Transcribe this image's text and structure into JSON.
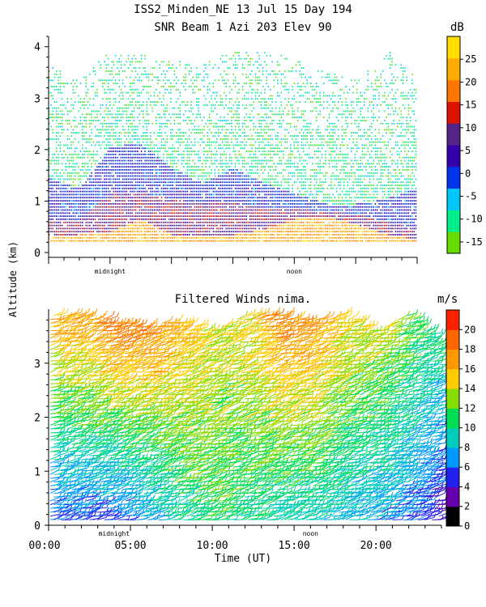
{
  "title": {
    "line1": "ISS2_Minden_NE  13 Jul 15 Day 194",
    "line2": "SNR Beam 1 Azi 203 Elev 90"
  },
  "shared": {
    "ylabel": "Altitude (km)",
    "xlabel": "Time (UT)"
  },
  "chart_data": [
    {
      "type": "heatmap",
      "name": "snr",
      "title": "SNR Beam 1 Azi 203 Elev 90",
      "ylabel": "Altitude (km)",
      "xlim": [
        0,
        24
      ],
      "ylim": [
        0,
        4.2
      ],
      "yticks": [
        0,
        1,
        2,
        3,
        4
      ],
      "xmarkers": [
        {
          "x": 4,
          "label": "midnight"
        },
        {
          "x": 16,
          "label": "noon"
        }
      ],
      "colorbar": {
        "unit": "dB",
        "ticks": [
          25,
          20,
          15,
          10,
          5,
          0,
          -5,
          -10,
          -15
        ],
        "min": -17.5,
        "max": 30,
        "colors": [
          "#66dd00",
          "#00ee88",
          "#00c8ff",
          "#0033ee",
          "#3300aa",
          "#552288",
          "#dd1100",
          "#ff7700",
          "#ffaa00",
          "#ffdd00"
        ]
      },
      "snr_profile": [
        {
          "t": 0.0,
          "top": 3.6,
          "dense": 1.4,
          "strong": 0.55,
          "vstrong": 0.25
        },
        {
          "t": 2.0,
          "top": 3.3,
          "dense": 1.2,
          "strong": 0.6,
          "vstrong": 0.3
        },
        {
          "t": 4.0,
          "top": 3.9,
          "dense": 2.0,
          "strong": 1.1,
          "vstrong": 0.35
        },
        {
          "t": 6.0,
          "top": 3.8,
          "dense": 2.1,
          "strong": 1.1,
          "vstrong": 0.6
        },
        {
          "t": 8.0,
          "top": 3.7,
          "dense": 1.6,
          "strong": 1.0,
          "vstrong": 0.3
        },
        {
          "t": 10.0,
          "top": 3.6,
          "dense": 1.3,
          "strong": 0.9,
          "vstrong": 0.3
        },
        {
          "t": 12.0,
          "top": 3.9,
          "dense": 1.6,
          "strong": 0.95,
          "vstrong": 0.3
        },
        {
          "t": 14.0,
          "top": 3.9,
          "dense": 1.3,
          "strong": 0.8,
          "vstrong": 0.4
        },
        {
          "t": 16.0,
          "top": 3.7,
          "dense": 1.1,
          "strong": 0.8,
          "vstrong": 0.6
        },
        {
          "t": 18.0,
          "top": 3.5,
          "dense": 0.9,
          "strong": 0.75,
          "vstrong": 0.65
        },
        {
          "t": 20.0,
          "top": 3.3,
          "dense": 0.9,
          "strong": 0.7,
          "vstrong": 0.5
        },
        {
          "t": 22.0,
          "top": 3.9,
          "dense": 1.0,
          "strong": 0.55,
          "vstrong": 0.3
        },
        {
          "t": 24.0,
          "top": 3.4,
          "dense": 1.2,
          "strong": 0.4,
          "vstrong": 0.2
        }
      ]
    },
    {
      "type": "scatter",
      "name": "winds",
      "title": "Filtered Winds nima.",
      "ylabel": "Altitude (km)",
      "xlabel": "Time (UT)",
      "xlim": [
        0,
        24
      ],
      "ylim": [
        0,
        4.0
      ],
      "xticks": [
        0,
        5,
        10,
        15,
        20
      ],
      "xticklabels": [
        "00:00",
        "05:00",
        "10:00",
        "15:00",
        "20:00"
      ],
      "yticks": [
        0,
        1,
        2,
        3
      ],
      "xmarkers": [
        {
          "x": 4,
          "label": "midnight"
        },
        {
          "x": 16,
          "label": "noon"
        }
      ],
      "colorbar": {
        "unit": "m/s",
        "ticks": [
          20,
          18,
          16,
          14,
          12,
          10,
          8,
          6,
          4,
          2,
          0
        ],
        "min": 0,
        "max": 22,
        "colors": [
          "#000000",
          "#6600aa",
          "#2222ee",
          "#0099ff",
          "#00ccbb",
          "#00dd55",
          "#88dd00",
          "#ffcc00",
          "#ff9900",
          "#ff6600",
          "#ff2200"
        ]
      },
      "speed_profile": [
        {
          "t": 0.0,
          "low": 5.0,
          "high": 17.0,
          "top": 3.9
        },
        {
          "t": 2.0,
          "low": 5.5,
          "high": 17.0,
          "top": 3.9
        },
        {
          "t": 4.0,
          "low": 5.0,
          "high": 19.0,
          "top": 3.8
        },
        {
          "t": 6.0,
          "low": 7.0,
          "high": 18.0,
          "top": 3.7
        },
        {
          "t": 8.0,
          "low": 10.0,
          "high": 16.0,
          "top": 3.8
        },
        {
          "t": 10.0,
          "low": 11.0,
          "high": 14.0,
          "top": 3.6
        },
        {
          "t": 12.0,
          "low": 10.0,
          "high": 15.0,
          "top": 3.9
        },
        {
          "t": 14.0,
          "low": 9.0,
          "high": 18.0,
          "top": 3.9
        },
        {
          "t": 16.0,
          "low": 9.0,
          "high": 17.0,
          "top": 3.8
        },
        {
          "t": 18.0,
          "low": 8.0,
          "high": 15.0,
          "top": 3.9
        },
        {
          "t": 20.0,
          "low": 7.0,
          "high": 14.0,
          "top": 3.6
        },
        {
          "t": 22.0,
          "low": 6.0,
          "high": 12.0,
          "top": 3.9
        },
        {
          "t": 24.0,
          "low": 3.0,
          "high": 10.0,
          "top": 3.4
        }
      ]
    }
  ]
}
